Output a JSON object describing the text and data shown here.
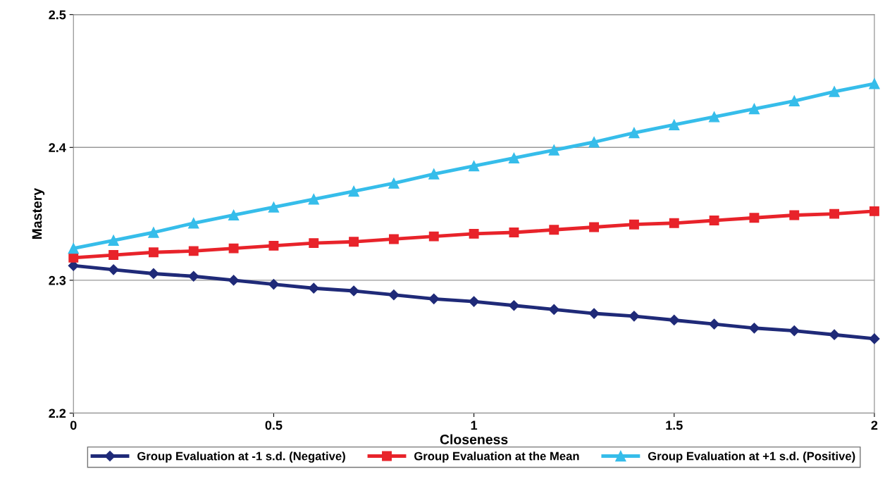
{
  "chart_data": {
    "type": "line",
    "xlabel": "Closeness",
    "ylabel": "Mastery",
    "x": [
      0,
      0.1,
      0.2,
      0.3,
      0.4,
      0.5,
      0.6,
      0.7,
      0.8,
      0.9,
      1,
      1.1,
      1.2,
      1.3,
      1.4,
      1.5,
      1.6,
      1.7,
      1.8,
      1.9,
      2
    ],
    "series": [
      {
        "name": "Group Evaluation at -1 s.d. (Negative)",
        "color": "#1f2a78",
        "marker": "diamond",
        "values": [
          2.311,
          2.308,
          2.305,
          2.303,
          2.3,
          2.297,
          2.294,
          2.292,
          2.289,
          2.286,
          2.284,
          2.281,
          2.278,
          2.275,
          2.273,
          2.27,
          2.267,
          2.264,
          2.262,
          2.259,
          2.256
        ]
      },
      {
        "name": "Group Evaluation at the Mean",
        "color": "#e8232a",
        "marker": "square",
        "values": [
          2.317,
          2.319,
          2.321,
          2.322,
          2.324,
          2.326,
          2.328,
          2.329,
          2.331,
          2.333,
          2.335,
          2.336,
          2.338,
          2.34,
          2.342,
          2.343,
          2.345,
          2.347,
          2.349,
          2.35,
          2.352
        ]
      },
      {
        "name": "Group Evaluation at +1 s.d. (Positive)",
        "color": "#36bdea",
        "marker": "triangle",
        "values": [
          2.324,
          2.33,
          2.336,
          2.343,
          2.349,
          2.355,
          2.361,
          2.367,
          2.373,
          2.38,
          2.386,
          2.392,
          2.398,
          2.404,
          2.411,
          2.417,
          2.423,
          2.429,
          2.435,
          2.442,
          2.448
        ]
      }
    ],
    "xlim": [
      0,
      2
    ],
    "xticks": [
      0,
      0.5,
      1,
      1.5,
      2
    ],
    "ylim": [
      2.2,
      2.5
    ],
    "yticks": [
      2.2,
      2.3,
      2.4,
      2.5
    ],
    "grid": "y",
    "legend": "bottom",
    "line_style": "solid"
  }
}
